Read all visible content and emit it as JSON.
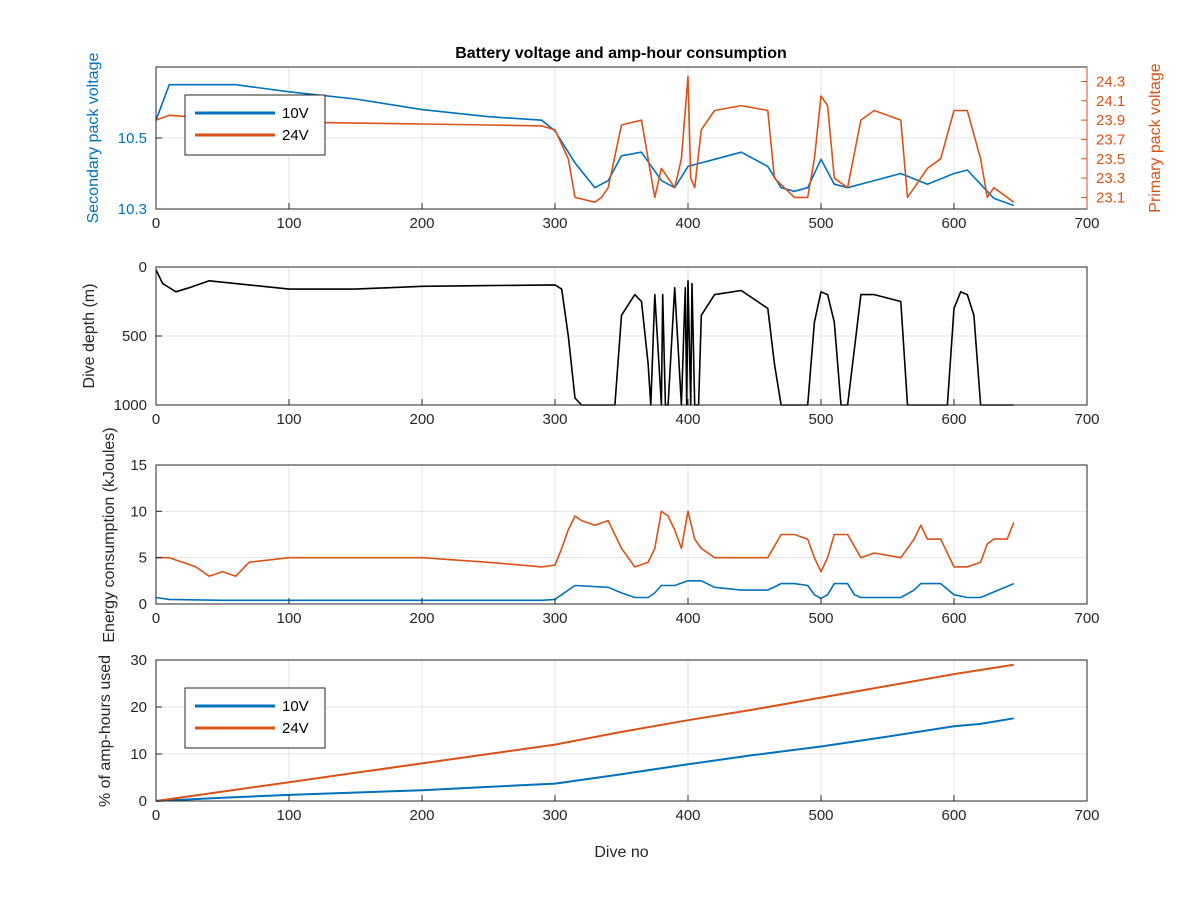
{
  "figure": {
    "title": "Battery voltage and amp-hour consumption"
  },
  "chart_data": [
    {
      "type": "line",
      "title": "Battery voltage and amp-hour consumption",
      "xlabel": "",
      "ylabel": "Secondary pack voltage",
      "ylabel_right": "Primary pack voltage",
      "xlim": [
        0,
        700
      ],
      "ylim": [
        10.3,
        10.7
      ],
      "ylim_right": [
        22.98,
        24.45
      ],
      "xticks": [
        0,
        100,
        200,
        300,
        400,
        500,
        600,
        700
      ],
      "yticks": [
        10.3,
        10.5
      ],
      "yticks_right": [
        23.1,
        23.3,
        23.5,
        23.7,
        23.9,
        24.1,
        24.3
      ],
      "grid": true,
      "legend": "top-left",
      "series": [
        {
          "name": "10V",
          "axis": "left",
          "color": "#0072BD",
          "x": [
            0,
            10,
            30,
            60,
            100,
            150,
            200,
            250,
            290,
            300,
            315,
            330,
            340,
            350,
            365,
            380,
            390,
            400,
            420,
            440,
            460,
            470,
            480,
            490,
            500,
            510,
            520,
            540,
            560,
            580,
            600,
            610,
            620,
            630,
            645
          ],
          "y": [
            10.55,
            10.65,
            10.65,
            10.65,
            10.63,
            10.61,
            10.58,
            10.56,
            10.55,
            10.52,
            10.43,
            10.36,
            10.38,
            10.45,
            10.46,
            10.38,
            10.36,
            10.42,
            10.44,
            10.46,
            10.42,
            10.36,
            10.35,
            10.36,
            10.44,
            10.37,
            10.36,
            10.38,
            10.4,
            10.37,
            10.4,
            10.41,
            10.37,
            10.33,
            10.31
          ]
        },
        {
          "name": "24V",
          "axis": "right",
          "color": "#D95319",
          "x": [
            0,
            10,
            40,
            100,
            200,
            250,
            290,
            300,
            310,
            315,
            330,
            335,
            340,
            350,
            365,
            370,
            375,
            380,
            390,
            395,
            400,
            402,
            405,
            410,
            420,
            440,
            460,
            465,
            480,
            490,
            495,
            500,
            505,
            510,
            520,
            530,
            540,
            560,
            565,
            580,
            590,
            600,
            610,
            620,
            625,
            630,
            645
          ],
          "y": [
            23.9,
            23.95,
            23.92,
            23.88,
            23.86,
            23.85,
            23.84,
            23.8,
            23.5,
            23.1,
            23.05,
            23.1,
            23.2,
            23.85,
            23.9,
            23.5,
            23.1,
            23.4,
            23.2,
            23.5,
            24.35,
            23.3,
            23.2,
            23.8,
            24.0,
            24.05,
            24.0,
            23.3,
            23.1,
            23.1,
            23.5,
            24.15,
            24.05,
            23.3,
            23.2,
            23.9,
            24.0,
            23.9,
            23.1,
            23.4,
            23.5,
            24.0,
            24.0,
            23.5,
            23.1,
            23.2,
            23.05
          ]
        }
      ]
    },
    {
      "type": "line",
      "xlabel": "",
      "ylabel": "Dive depth (m)",
      "xlim": [
        0,
        700
      ],
      "ylim": [
        0,
        1000
      ],
      "y_reversed": true,
      "xticks": [
        0,
        100,
        200,
        300,
        400,
        500,
        600,
        700
      ],
      "yticks": [
        0,
        500,
        1000
      ],
      "grid": true,
      "series": [
        {
          "name": "",
          "color": "#000000",
          "x": [
            0,
            5,
            15,
            25,
            40,
            70,
            100,
            150,
            200,
            250,
            300,
            305,
            310,
            315,
            320,
            345,
            350,
            360,
            365,
            370,
            372,
            375,
            380,
            381,
            383,
            385,
            390,
            395,
            398,
            399,
            400,
            402,
            403,
            405,
            408,
            410,
            420,
            440,
            460,
            465,
            470,
            490,
            495,
            500,
            505,
            510,
            515,
            520,
            525,
            530,
            540,
            560,
            565,
            595,
            600,
            605,
            610,
            615,
            620,
            622,
            645
          ],
          "y": [
            20,
            120,
            180,
            150,
            100,
            130,
            160,
            160,
            140,
            135,
            130,
            160,
            500,
            950,
            1000,
            1000,
            350,
            200,
            250,
            700,
            1000,
            200,
            1000,
            200,
            1000,
            1000,
            150,
            1000,
            150,
            1000,
            100,
            1000,
            120,
            1000,
            1000,
            350,
            200,
            170,
            300,
            700,
            1000,
            1000,
            400,
            180,
            200,
            400,
            1000,
            1000,
            600,
            200,
            200,
            250,
            1000,
            1000,
            300,
            180,
            200,
            350,
            1000,
            1000,
            1000
          ]
        }
      ]
    },
    {
      "type": "line",
      "xlabel": "",
      "ylabel": "Energy consumption (kJoules)",
      "xlim": [
        0,
        700
      ],
      "ylim": [
        0,
        15
      ],
      "xticks": [
        0,
        100,
        200,
        300,
        400,
        500,
        600,
        700
      ],
      "yticks": [
        0,
        5,
        10,
        15
      ],
      "grid": true,
      "series": [
        {
          "name": "24V",
          "color": "#D95319",
          "x": [
            0,
            10,
            20,
            30,
            40,
            50,
            60,
            70,
            100,
            150,
            200,
            250,
            290,
            300,
            305,
            310,
            315,
            320,
            330,
            340,
            350,
            360,
            370,
            375,
            380,
            385,
            390,
            395,
            400,
            405,
            410,
            420,
            440,
            460,
            470,
            480,
            490,
            495,
            500,
            505,
            510,
            520,
            530,
            540,
            560,
            570,
            575,
            580,
            590,
            600,
            610,
            620,
            625,
            630,
            640,
            645
          ],
          "y": [
            5,
            5,
            4.5,
            4,
            3,
            3.5,
            3,
            4.5,
            5,
            5,
            5,
            4.5,
            4,
            4.2,
            6,
            8,
            9.5,
            9,
            8.5,
            9,
            6,
            4,
            4.5,
            6,
            10,
            9.5,
            8,
            6,
            10,
            7,
            6,
            5,
            5,
            5,
            7.5,
            7.5,
            7,
            5,
            3.5,
            5,
            7.5,
            7.5,
            5,
            5.5,
            5,
            7,
            8.5,
            7,
            7,
            4,
            4,
            4.5,
            6.5,
            7,
            7,
            8.8
          ]
        },
        {
          "name": "10V",
          "color": "#0072BD",
          "x": [
            0,
            10,
            50,
            100,
            200,
            290,
            300,
            305,
            310,
            315,
            340,
            350,
            360,
            370,
            375,
            380,
            390,
            400,
            410,
            420,
            440,
            460,
            470,
            480,
            490,
            495,
            500,
            505,
            510,
            520,
            525,
            530,
            540,
            560,
            570,
            575,
            580,
            590,
            600,
            610,
            620,
            645
          ],
          "y": [
            0.7,
            0.5,
            0.4,
            0.4,
            0.4,
            0.4,
            0.5,
            1,
            1.5,
            2,
            1.8,
            1.2,
            0.7,
            0.7,
            1.2,
            2,
            2,
            2.5,
            2.5,
            1.8,
            1.5,
            1.5,
            2.2,
            2.2,
            2,
            1,
            0.6,
            1,
            2.2,
            2.2,
            1,
            0.7,
            0.7,
            0.7,
            1.5,
            2.2,
            2.2,
            2.2,
            1,
            0.7,
            0.7,
            2.2
          ]
        }
      ]
    },
    {
      "type": "line",
      "xlabel": "Dive no",
      "ylabel": "% of amp-hours used",
      "xlim": [
        0,
        700
      ],
      "ylim": [
        0,
        30
      ],
      "xticks": [
        0,
        100,
        200,
        300,
        400,
        500,
        600,
        700
      ],
      "yticks": [
        0,
        10,
        20,
        30
      ],
      "grid": true,
      "legend": "top-left",
      "series": [
        {
          "name": "10V",
          "color": "#0072BD",
          "x": [
            0,
            50,
            100,
            200,
            250,
            300,
            350,
            400,
            450,
            500,
            550,
            600,
            620,
            645
          ],
          "y": [
            0,
            0.7,
            1.3,
            2.3,
            3,
            3.7,
            5.7,
            7.8,
            9.8,
            11.6,
            13.7,
            15.9,
            16.4,
            17.6
          ]
        },
        {
          "name": "24V",
          "color": "#D95319",
          "x": [
            0,
            50,
            100,
            150,
            200,
            250,
            300,
            350,
            400,
            450,
            500,
            550,
            600,
            645
          ],
          "y": [
            0,
            2,
            4,
            6,
            8,
            10,
            12,
            14.7,
            17.2,
            19.5,
            22,
            24.5,
            27,
            29
          ]
        }
      ]
    }
  ]
}
